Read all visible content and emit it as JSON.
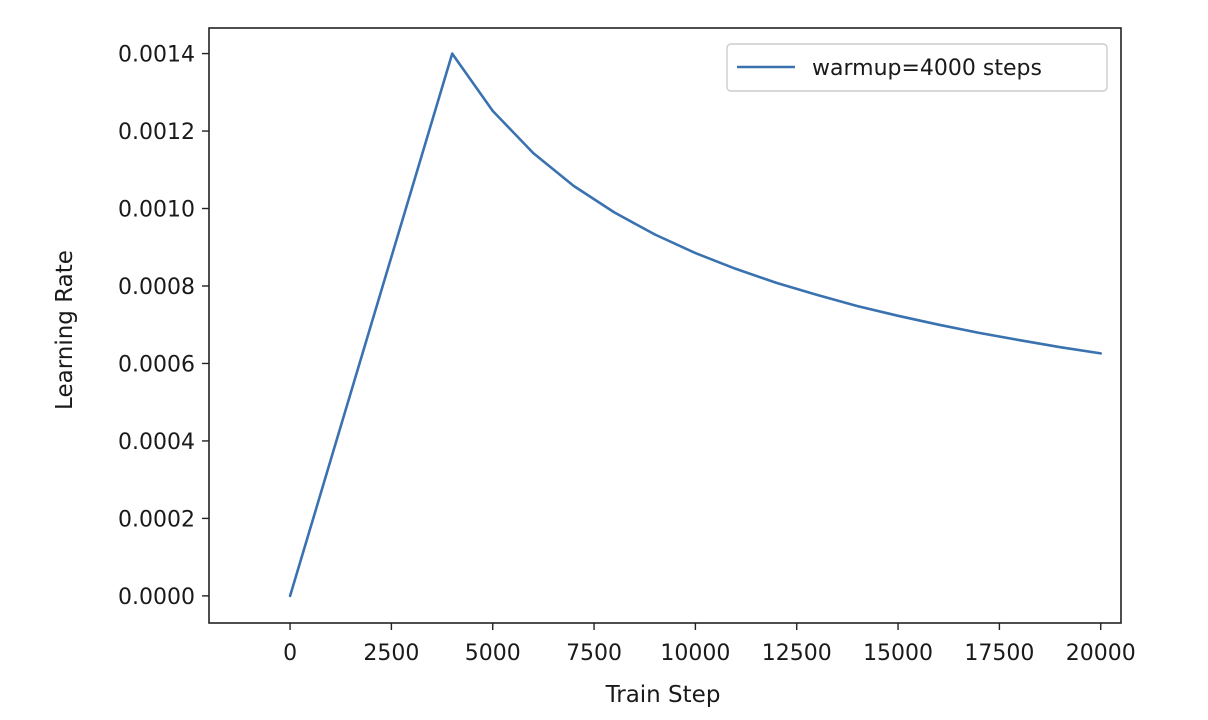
{
  "chart_data": {
    "type": "line",
    "xlabel": "Train Step",
    "ylabel": "Learning Rate",
    "xlim": [
      -2000,
      20500
    ],
    "ylim": [
      -7e-05,
      0.001466
    ],
    "x_ticks": [
      0,
      2500,
      5000,
      7500,
      10000,
      12500,
      15000,
      17500,
      20000
    ],
    "x_tick_labels": [
      "0",
      "2500",
      "5000",
      "7500",
      "10000",
      "12500",
      "15000",
      "17500",
      "20000"
    ],
    "y_ticks": [
      0.0,
      0.0002,
      0.0004,
      0.0006,
      0.0008,
      0.001,
      0.0012,
      0.0014
    ],
    "y_tick_labels": [
      "0.0000",
      "0.0002",
      "0.0004",
      "0.0006",
      "0.0008",
      "0.0010",
      "0.0012",
      "0.0014"
    ],
    "grid": false,
    "legend_position": "top-right",
    "series": [
      {
        "name": "warmup=4000 steps",
        "color": "#3a72b0",
        "x": [
          0,
          1000,
          2000,
          3000,
          4000,
          5000,
          6000,
          7000,
          8000,
          9000,
          10000,
          11000,
          12000,
          13000,
          14000,
          15000,
          16000,
          17000,
          18000,
          19000,
          20000
        ],
        "y": [
          0.0,
          0.00035,
          0.0007,
          0.00105,
          0.0014,
          0.001252,
          0.001143,
          0.001058,
          0.00099,
          0.000933,
          0.000885,
          0.000844,
          0.000808,
          0.000777,
          0.000748,
          0.000723,
          0.0007,
          0.000679,
          0.00066,
          0.000642,
          0.000626
        ]
      }
    ]
  }
}
